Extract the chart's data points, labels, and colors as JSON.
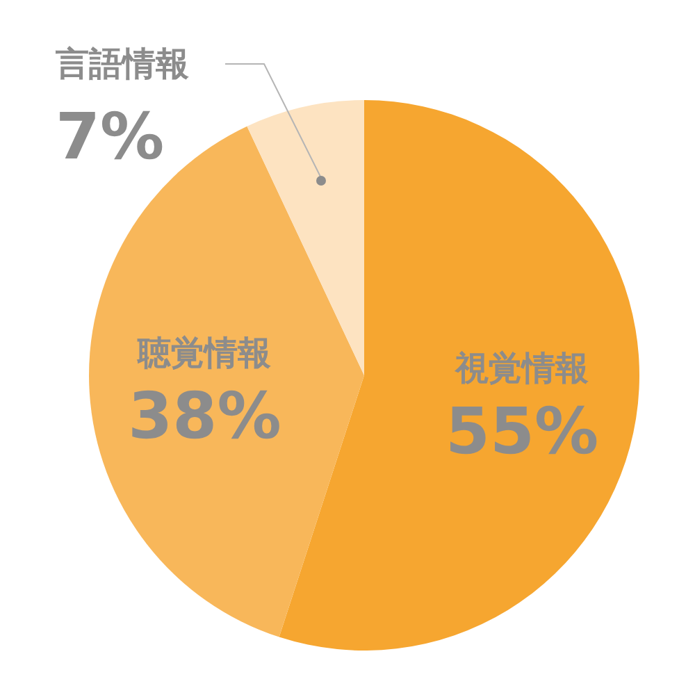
{
  "chart_data": {
    "type": "pie",
    "categories": [
      "視覚情報",
      "聴覚情報",
      "言語情報"
    ],
    "values": [
      55,
      38,
      7
    ],
    "colors": [
      "#f6a630",
      "#f8b75a",
      "#fde3c1"
    ],
    "value_labels": [
      "55%",
      "38%",
      "7%"
    ]
  }
}
